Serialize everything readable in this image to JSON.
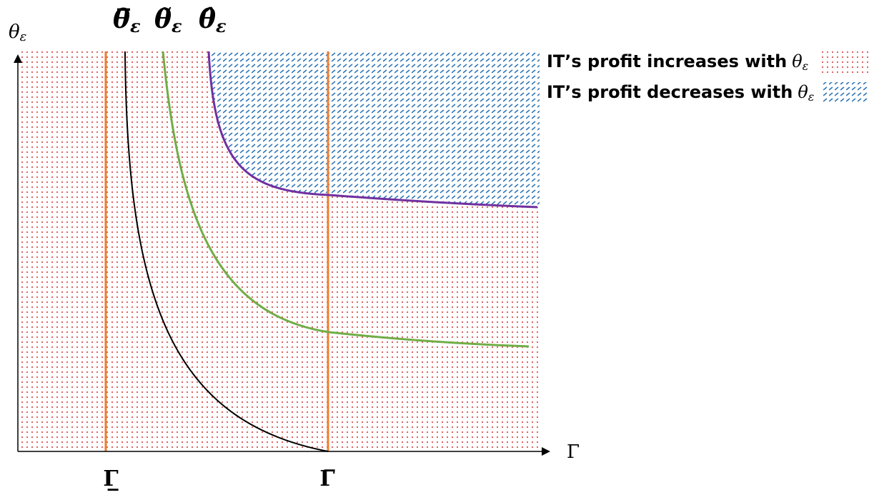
{
  "axes": {
    "y_label": {
      "symbol": "θ",
      "subscript": "ε"
    },
    "x_label": "Γ"
  },
  "curve_labels": [
    {
      "symbol": "θ̅",
      "subscript": "ε"
    },
    {
      "symbol": "θ̃",
      "subscript": "ε"
    },
    {
      "symbol": "θ̂",
      "subscript": "ε"
    }
  ],
  "x_marks": [
    "Γ̲",
    "Γ̅"
  ],
  "legend": [
    {
      "text": "IT’s profit increases with",
      "symbol": "θ",
      "subscript": "ε"
    },
    {
      "text": "IT’s profit decreases with",
      "symbol": "θ",
      "subscript": "ε"
    }
  ]
}
